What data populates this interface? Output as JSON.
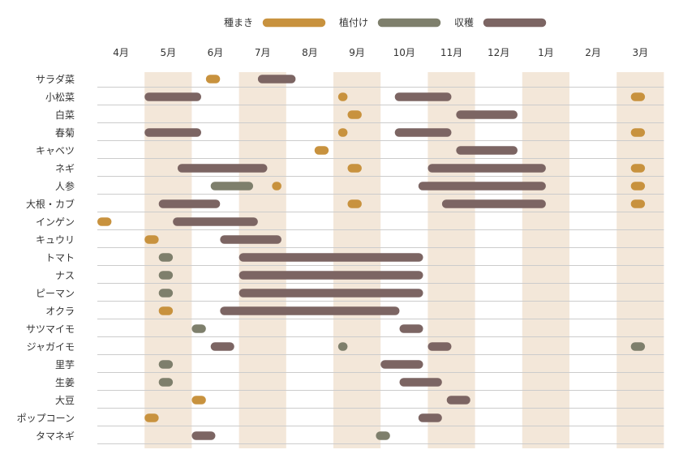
{
  "chart_data": {
    "type": "gantt",
    "title": "",
    "legend_position": "top-center",
    "months": [
      "4月",
      "5月",
      "6月",
      "7月",
      "8月",
      "9月",
      "10月",
      "11月",
      "12月",
      "1月",
      "2月",
      "3月"
    ],
    "shaded_columns": [
      1,
      3,
      5,
      7,
      9,
      11
    ],
    "series": [
      {
        "key": "sow",
        "name": "種まき",
        "color": "#C8923E"
      },
      {
        "key": "plant",
        "name": "植付け",
        "color": "#7E7F6C"
      },
      {
        "key": "harvest",
        "name": "収穫",
        "color": "#7C6563"
      }
    ],
    "colors": {
      "shade": "#F3E7D9",
      "grid": "#CCCCCC",
      "text": "#333333"
    },
    "crops": [
      {
        "name": "サラダ菜",
        "periods": [
          {
            "type": "sow",
            "start": 2.3,
            "end": 2.6
          },
          {
            "type": "harvest",
            "start": 3.4,
            "end": 4.2
          }
        ]
      },
      {
        "name": "小松菜",
        "periods": [
          {
            "type": "harvest",
            "start": 1.0,
            "end": 2.2
          },
          {
            "type": "sow",
            "start": 5.1,
            "end": 5.3
          },
          {
            "type": "harvest",
            "start": 6.3,
            "end": 7.5
          },
          {
            "type": "sow",
            "start": 11.3,
            "end": 11.6
          }
        ]
      },
      {
        "name": "白菜",
        "periods": [
          {
            "type": "sow",
            "start": 5.3,
            "end": 5.6
          },
          {
            "type": "harvest",
            "start": 7.6,
            "end": 8.9
          }
        ]
      },
      {
        "name": "春菊",
        "periods": [
          {
            "type": "harvest",
            "start": 1.0,
            "end": 2.2
          },
          {
            "type": "sow",
            "start": 5.1,
            "end": 5.3
          },
          {
            "type": "harvest",
            "start": 6.3,
            "end": 7.5
          },
          {
            "type": "sow",
            "start": 11.3,
            "end": 11.6
          }
        ]
      },
      {
        "name": "キャベツ",
        "periods": [
          {
            "type": "sow",
            "start": 4.6,
            "end": 4.9
          },
          {
            "type": "harvest",
            "start": 7.6,
            "end": 8.9
          }
        ]
      },
      {
        "name": "ネギ",
        "periods": [
          {
            "type": "harvest",
            "start": 1.7,
            "end": 3.6
          },
          {
            "type": "sow",
            "start": 5.3,
            "end": 5.6
          },
          {
            "type": "harvest",
            "start": 7.0,
            "end": 9.5
          },
          {
            "type": "sow",
            "start": 11.3,
            "end": 11.6
          }
        ]
      },
      {
        "name": "人参",
        "periods": [
          {
            "type": "plant",
            "start": 2.4,
            "end": 3.3
          },
          {
            "type": "sow",
            "start": 3.7,
            "end": 3.9
          },
          {
            "type": "harvest",
            "start": 6.8,
            "end": 9.5
          },
          {
            "type": "sow",
            "start": 11.3,
            "end": 11.6
          }
        ]
      },
      {
        "name": "大根・カブ",
        "periods": [
          {
            "type": "harvest",
            "start": 1.3,
            "end": 2.6
          },
          {
            "type": "sow",
            "start": 5.3,
            "end": 5.6
          },
          {
            "type": "harvest",
            "start": 7.3,
            "end": 9.5
          },
          {
            "type": "sow",
            "start": 11.3,
            "end": 11.6
          }
        ]
      },
      {
        "name": "インゲン",
        "periods": [
          {
            "type": "sow",
            "start": 0.0,
            "end": 0.3
          },
          {
            "type": "harvest",
            "start": 1.6,
            "end": 3.4
          }
        ]
      },
      {
        "name": "キュウリ",
        "periods": [
          {
            "type": "sow",
            "start": 1.0,
            "end": 1.3
          },
          {
            "type": "harvest",
            "start": 2.6,
            "end": 3.9
          }
        ]
      },
      {
        "name": "トマト",
        "periods": [
          {
            "type": "plant",
            "start": 1.3,
            "end": 1.6
          },
          {
            "type": "harvest",
            "start": 3.0,
            "end": 6.9
          }
        ]
      },
      {
        "name": "ナス",
        "periods": [
          {
            "type": "plant",
            "start": 1.3,
            "end": 1.6
          },
          {
            "type": "harvest",
            "start": 3.0,
            "end": 6.9
          }
        ]
      },
      {
        "name": "ピーマン",
        "periods": [
          {
            "type": "plant",
            "start": 1.3,
            "end": 1.6
          },
          {
            "type": "harvest",
            "start": 3.0,
            "end": 6.9
          }
        ]
      },
      {
        "name": "オクラ",
        "periods": [
          {
            "type": "sow",
            "start": 1.3,
            "end": 1.6
          },
          {
            "type": "harvest",
            "start": 2.6,
            "end": 6.4
          }
        ]
      },
      {
        "name": "サツマイモ",
        "periods": [
          {
            "type": "plant",
            "start": 2.0,
            "end": 2.3
          },
          {
            "type": "harvest",
            "start": 6.4,
            "end": 6.9
          }
        ]
      },
      {
        "name": "ジャガイモ",
        "periods": [
          {
            "type": "harvest",
            "start": 2.4,
            "end": 2.9
          },
          {
            "type": "plant",
            "start": 5.1,
            "end": 5.3
          },
          {
            "type": "harvest",
            "start": 7.0,
            "end": 7.5
          },
          {
            "type": "plant",
            "start": 11.3,
            "end": 11.6
          }
        ]
      },
      {
        "name": "里芋",
        "periods": [
          {
            "type": "plant",
            "start": 1.3,
            "end": 1.6
          },
          {
            "type": "harvest",
            "start": 6.0,
            "end": 6.9
          }
        ]
      },
      {
        "name": "生姜",
        "periods": [
          {
            "type": "plant",
            "start": 1.3,
            "end": 1.6
          },
          {
            "type": "harvest",
            "start": 6.4,
            "end": 7.3
          }
        ]
      },
      {
        "name": "大豆",
        "periods": [
          {
            "type": "sow",
            "start": 2.0,
            "end": 2.3
          },
          {
            "type": "harvest",
            "start": 7.4,
            "end": 7.9
          }
        ]
      },
      {
        "name": "ポップコーン",
        "periods": [
          {
            "type": "sow",
            "start": 1.0,
            "end": 1.3
          },
          {
            "type": "harvest",
            "start": 6.8,
            "end": 7.3
          }
        ]
      },
      {
        "name": "タマネギ",
        "periods": [
          {
            "type": "harvest",
            "start": 2.0,
            "end": 2.5
          },
          {
            "type": "plant",
            "start": 5.9,
            "end": 6.2
          }
        ]
      }
    ]
  }
}
